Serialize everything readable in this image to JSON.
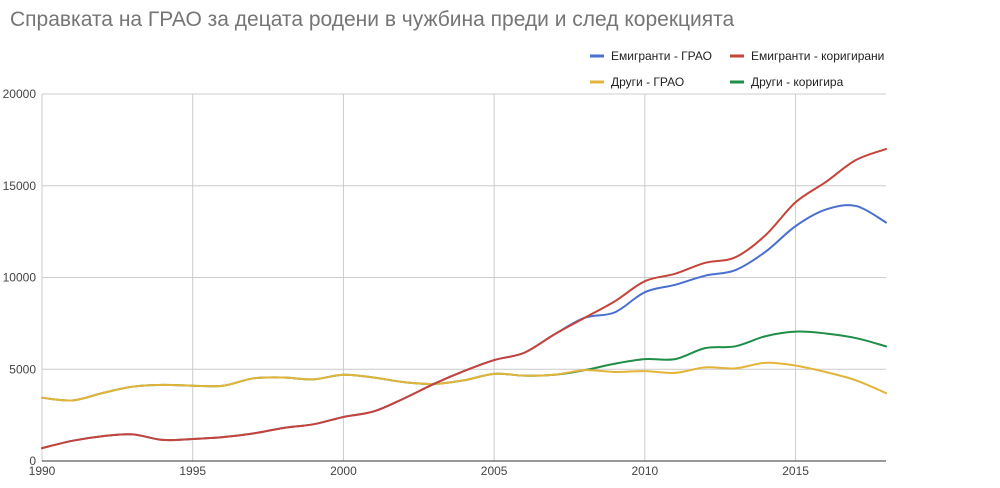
{
  "chart_data": {
    "type": "line",
    "title": "Справката на ГРАО за децата родени в чужбина преди и след корекцията",
    "xlabel": "",
    "ylabel": "",
    "x": [
      1990,
      1991,
      1992,
      1993,
      1994,
      1995,
      1996,
      1997,
      1998,
      1999,
      2000,
      2001,
      2002,
      2003,
      2004,
      2005,
      2006,
      2007,
      2008,
      2009,
      2010,
      2011,
      2012,
      2013,
      2014,
      2015,
      2016,
      2017,
      2018
    ],
    "xlim": [
      1990,
      2018
    ],
    "ylim": [
      0,
      20000
    ],
    "x_ticks": [
      1990,
      1995,
      2000,
      2005,
      2010,
      2015
    ],
    "y_ticks": [
      0,
      5000,
      10000,
      15000,
      20000
    ],
    "grid": true,
    "legend_position": "top-right",
    "series": [
      {
        "name": "Емигранти - ГРАО",
        "color": "#4a6fcf",
        "values": [
          700,
          1100,
          1350,
          1450,
          1150,
          1200,
          1300,
          1500,
          1800,
          2000,
          2400,
          2700,
          3400,
          4200,
          4900,
          5500,
          5900,
          6900,
          7800,
          8100,
          9200,
          9600,
          10100,
          10400,
          11400,
          12800,
          13700,
          13900,
          13000
        ]
      },
      {
        "name": "Емигранти - коригирани",
        "color": "#c5443a",
        "values": [
          700,
          1100,
          1350,
          1450,
          1150,
          1200,
          1300,
          1500,
          1800,
          2000,
          2400,
          2700,
          3400,
          4200,
          4900,
          5500,
          5900,
          6900,
          7800,
          8700,
          9800,
          10200,
          10800,
          11100,
          12300,
          14100,
          15200,
          16400,
          17000
        ]
      },
      {
        "name": "Други - ГРАО",
        "color": "#e3b43a",
        "values": [
          3450,
          3300,
          3700,
          4050,
          4150,
          4100,
          4100,
          4500,
          4550,
          4450,
          4700,
          4550,
          4300,
          4200,
          4400,
          4750,
          4650,
          4700,
          4950,
          4850,
          4900,
          4800,
          5100,
          5050,
          5350,
          5200,
          4850,
          4400,
          3700
        ]
      },
      {
        "name": "Други - коригира",
        "color": "#1f8e49",
        "values": [
          3450,
          3300,
          3700,
          4050,
          4150,
          4100,
          4100,
          4500,
          4550,
          4450,
          4700,
          4550,
          4300,
          4200,
          4400,
          4750,
          4650,
          4700,
          4950,
          5300,
          5550,
          5550,
          6150,
          6250,
          6800,
          7050,
          6950,
          6700,
          6250
        ]
      }
    ],
    "draw_order": [
      3,
      2,
      0,
      1
    ]
  }
}
